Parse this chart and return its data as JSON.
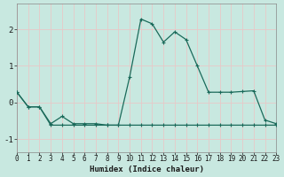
{
  "title": "",
  "xlabel": "Humidex (Indice chaleur)",
  "ylabel": "",
  "background_color": "#c8e8e0",
  "grid_color": "#e8c8c8",
  "line_color": "#1a6a5a",
  "xlim": [
    0,
    23
  ],
  "ylim": [
    -1.35,
    2.7
  ],
  "xticks": [
    0,
    1,
    2,
    3,
    4,
    5,
    6,
    7,
    8,
    9,
    10,
    11,
    12,
    13,
    14,
    15,
    16,
    17,
    18,
    19,
    20,
    21,
    22,
    23
  ],
  "yticks": [
    -1,
    0,
    1,
    2
  ],
  "series1_x": [
    0,
    1,
    2,
    3,
    4,
    5,
    6,
    7,
    8,
    9,
    10,
    11,
    12,
    13,
    14,
    15,
    16,
    17,
    18,
    19,
    20,
    21,
    22,
    23
  ],
  "series1_y": [
    0.28,
    -0.12,
    -0.12,
    -0.58,
    -0.38,
    -0.58,
    -0.58,
    -0.58,
    -0.62,
    -0.62,
    0.7,
    2.28,
    2.15,
    1.65,
    1.93,
    1.72,
    1.0,
    0.28,
    0.28,
    0.28,
    0.3,
    0.32,
    -0.48,
    -0.58
  ],
  "series2_x": [
    0,
    1,
    2,
    3,
    4,
    5,
    6,
    7,
    8,
    9,
    10,
    11,
    12,
    13,
    14,
    15,
    16,
    17,
    18,
    19,
    20,
    21,
    22,
    23
  ],
  "series2_y": [
    0.28,
    -0.12,
    -0.12,
    -0.62,
    -0.62,
    -0.62,
    -0.62,
    -0.62,
    -0.62,
    -0.62,
    -0.62,
    -0.62,
    -0.62,
    -0.62,
    -0.62,
    -0.62,
    -0.62,
    -0.62,
    -0.62,
    -0.62,
    -0.62,
    -0.62,
    -0.62,
    -0.62
  ]
}
